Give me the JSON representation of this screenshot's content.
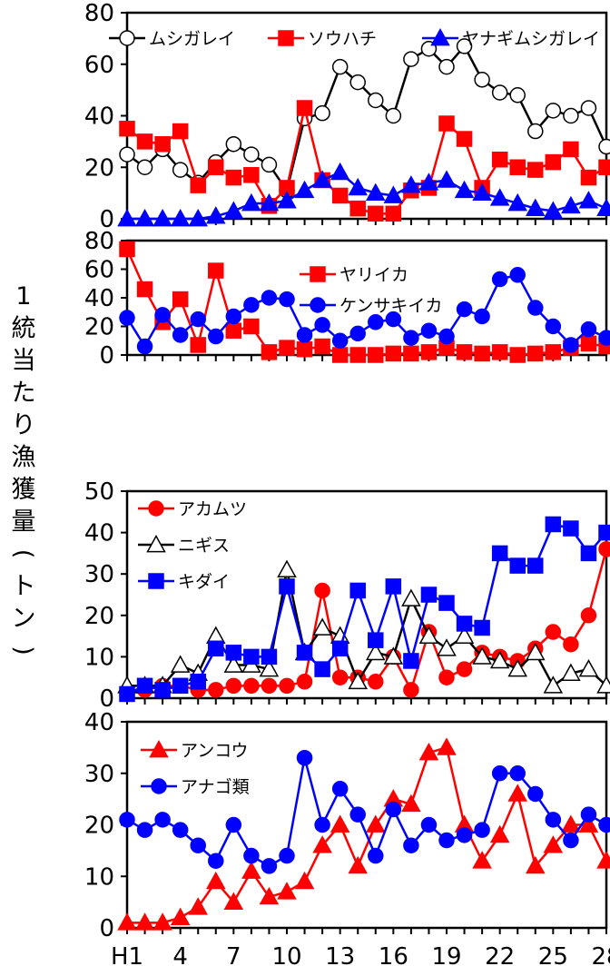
{
  "y_axis_label": "1統当たり漁獲量(トン)",
  "x_tick_labels": [
    "H1",
    "4",
    "7",
    "10",
    "13",
    "16",
    "19",
    "22",
    "25",
    "28"
  ],
  "colors": {
    "red": "#ff0000",
    "blue": "#0000ff",
    "black": "#000000",
    "white": "#ffffff"
  },
  "chart_data": [
    {
      "type": "line",
      "ylim": [
        0,
        80
      ],
      "yticks": [
        0,
        20,
        40,
        60,
        80
      ],
      "xlim": [
        1,
        28
      ],
      "legend_layout": "row-top",
      "series": [
        {
          "name": "ムシガレイ",
          "marker": "circle",
          "color": "#000000",
          "fill": "#ffffff",
          "markers_on_top": false,
          "values": [
            25,
            20,
            27,
            19,
            14,
            22,
            29,
            25,
            21,
            11,
            39,
            41,
            59,
            53,
            46,
            40,
            62,
            66,
            59,
            67,
            54,
            49,
            48,
            34,
            42,
            40,
            43,
            28
          ]
        },
        {
          "name": "ソウハチ",
          "marker": "square",
          "color": "#ff0000",
          "fill": "#ff0000",
          "markers_on_top": false,
          "values": [
            35,
            30,
            29,
            34,
            13,
            20,
            16,
            17,
            5,
            12,
            43,
            15,
            9,
            4,
            2,
            2,
            11,
            12,
            37,
            31,
            12,
            23,
            20,
            19,
            22,
            27,
            16,
            20
          ]
        },
        {
          "name": "ヤナギムシガレイ",
          "marker": "triangle",
          "color": "#0000ff",
          "fill": "#0000ff",
          "markers_on_top": false,
          "values": [
            0,
            0,
            0,
            0,
            0,
            1,
            3,
            6,
            6,
            7,
            11,
            15,
            18,
            12,
            10,
            9,
            13,
            14,
            15,
            11,
            10,
            8,
            6,
            4,
            3,
            5,
            7,
            4
          ]
        }
      ]
    },
    {
      "type": "line",
      "ylim": [
        0,
        80
      ],
      "yticks": [
        0,
        20,
        40,
        60,
        80
      ],
      "xlim": [
        1,
        28
      ],
      "legend_layout": "column-right",
      "series": [
        {
          "name": "ヤリイカ",
          "marker": "square",
          "color": "#ff0000",
          "fill": "#ff0000",
          "markers_on_top": false,
          "values": [
            74,
            46,
            23,
            39,
            7,
            59,
            17,
            20,
            2,
            5,
            4,
            6,
            0,
            0,
            0,
            1,
            1,
            2,
            5,
            2,
            1,
            2,
            0,
            1,
            2,
            5,
            8,
            6
          ]
        },
        {
          "name": "ケンサキイカ",
          "marker": "circle",
          "color": "#0000ff",
          "fill": "#0000ff",
          "markers_on_top": false,
          "values": [
            26,
            6,
            28,
            14,
            25,
            13,
            27,
            35,
            40,
            39,
            14,
            21,
            10,
            15,
            23,
            25,
            12,
            17,
            13,
            32,
            27,
            53,
            56,
            33,
            20,
            7,
            18,
            12
          ]
        }
      ]
    },
    {
      "type": "line",
      "ylim": [
        0,
        50
      ],
      "yticks": [
        0,
        10,
        20,
        30,
        40,
        50
      ],
      "xlim": [
        1,
        28
      ],
      "legend_layout": "column-left",
      "series": [
        {
          "name": "アカムツ",
          "marker": "circle",
          "color": "#ff0000",
          "fill": "#ff0000",
          "markers_on_top": true,
          "values": [
            1,
            2,
            3,
            3,
            2,
            2,
            3,
            3,
            3,
            3,
            4,
            26,
            5,
            5,
            4,
            10,
            2,
            16,
            5,
            7,
            11,
            10,
            9,
            12,
            16,
            13,
            20,
            36
          ]
        },
        {
          "name": "ニギス",
          "marker": "triangle",
          "color": "#000000",
          "fill": "#ffffff",
          "markers_on_top": true,
          "values": [
            3,
            3,
            3,
            8,
            6,
            15,
            8,
            8,
            7,
            31,
            11,
            17,
            15,
            4,
            11,
            10,
            24,
            15,
            12,
            15,
            10,
            9,
            7,
            11,
            3,
            6,
            7,
            3
          ]
        },
        {
          "name": "キダイ",
          "marker": "square",
          "color": "#0000ff",
          "fill": "#0000ff",
          "markers_on_top": true,
          "values": [
            1,
            3,
            2,
            3,
            4,
            12,
            11,
            10,
            10,
            27,
            11,
            7,
            12,
            26,
            14,
            27,
            9,
            25,
            23,
            18,
            17,
            35,
            32,
            32,
            42,
            41,
            35,
            40
          ]
        }
      ]
    },
    {
      "type": "line",
      "ylim": [
        0,
        40
      ],
      "yticks": [
        0,
        10,
        20,
        30,
        40
      ],
      "xlim": [
        1,
        28
      ],
      "legend_layout": "column-left",
      "series": [
        {
          "name": "アンコウ",
          "marker": "triangle",
          "color": "#ff0000",
          "fill": "#ff0000",
          "markers_on_top": false,
          "values": [
            1,
            1,
            1,
            2,
            4,
            9,
            5,
            11,
            6,
            7,
            9,
            16,
            20,
            12,
            20,
            25,
            24,
            34,
            35,
            20,
            13,
            18,
            26,
            12,
            16,
            20,
            20,
            13
          ]
        },
        {
          "name": "アナゴ類",
          "marker": "circle",
          "color": "#0000ff",
          "fill": "#0000ff",
          "markers_on_top": false,
          "values": [
            21,
            19,
            21,
            19,
            16,
            13,
            20,
            14,
            12,
            14,
            33,
            20,
            27,
            22,
            14,
            23,
            16,
            20,
            17,
            18,
            19,
            30,
            30,
            26,
            21,
            17,
            22,
            20
          ]
        }
      ]
    }
  ]
}
